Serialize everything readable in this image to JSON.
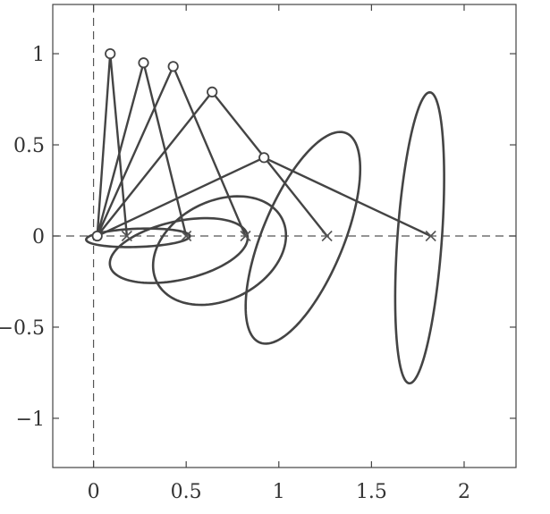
{
  "chart_data": {
    "type": "line",
    "title": "",
    "xlabel": "",
    "ylabel": "",
    "xlim": [
      -0.22,
      2.28
    ],
    "ylim": [
      -1.27,
      1.27
    ],
    "x_ticks": [
      0,
      0.5,
      1,
      1.5,
      2
    ],
    "x_tick_labels": [
      "0",
      "0.5",
      "1",
      "1.5",
      "2"
    ],
    "y_ticks": [
      1,
      0.5,
      0,
      -0.5,
      -1
    ],
    "y_tick_labels": [
      "1",
      "0.5",
      "0",
      "−0.5",
      "−1"
    ],
    "grid": false,
    "dashed_reference_lines": {
      "x": 0,
      "y": 0
    },
    "origin_marker": {
      "x": 0.02,
      "y": 0.0,
      "marker": "circle"
    },
    "ellipses": [
      {
        "cx": 0.24,
        "cy": -0.01,
        "rx": 0.28,
        "ry": 0.05,
        "angle_deg": 2
      },
      {
        "cx": 0.46,
        "cy": -0.08,
        "rx": 0.38,
        "ry": 0.16,
        "angle_deg": 13
      },
      {
        "cx": 0.68,
        "cy": -0.08,
        "rx": 0.38,
        "ry": 0.27,
        "angle_deg": 28
      },
      {
        "cx": 1.13,
        "cy": -0.01,
        "rx": 0.62,
        "ry": 0.22,
        "angle_deg": 68
      },
      {
        "cx": 1.76,
        "cy": -0.01,
        "rx": 0.8,
        "ry": 0.12,
        "angle_deg": 86
      }
    ],
    "linkages": [
      {
        "joint": [
          0.09,
          1.0
        ],
        "end": [
          0.18,
          0.0
        ]
      },
      {
        "joint": [
          0.27,
          0.95
        ],
        "end": [
          0.5,
          0.0
        ]
      },
      {
        "joint": [
          0.43,
          0.93
        ],
        "end": [
          0.82,
          0.0
        ]
      },
      {
        "joint": [
          0.64,
          0.79
        ],
        "end": [
          1.26,
          0.0
        ]
      },
      {
        "joint": [
          0.92,
          0.43
        ],
        "end": [
          1.82,
          0.0
        ]
      }
    ],
    "base_point": [
      0.02,
      0.0
    ]
  }
}
